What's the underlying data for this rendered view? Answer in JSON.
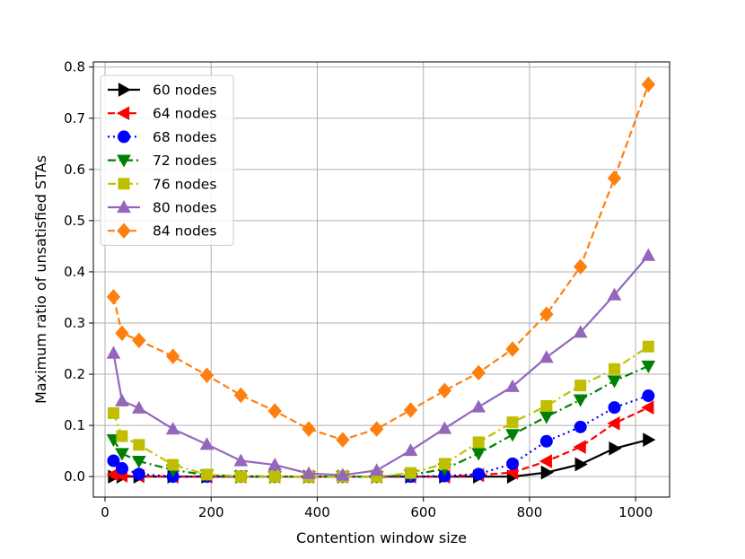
{
  "chart_data": {
    "type": "line",
    "title": "",
    "xlabel": "Contention window size",
    "ylabel": "Maximum ratio of unsatisfied STAs",
    "xlim": [
      -22,
      1064
    ],
    "ylim": [
      -0.04,
      0.81
    ],
    "xticks": [
      0,
      200,
      400,
      600,
      800,
      1000
    ],
    "xtick_labels": [
      "0",
      "200",
      "400",
      "600",
      "800",
      "1000"
    ],
    "yticks": [
      0.0,
      0.1,
      0.2,
      0.3,
      0.4,
      0.5,
      0.6,
      0.7,
      0.8
    ],
    "ytick_labels": [
      "0.0",
      "0.1",
      "0.2",
      "0.3",
      "0.4",
      "0.5",
      "0.6",
      "0.7",
      "0.8"
    ],
    "grid": true,
    "legend_position": "upper-left",
    "x": [
      16,
      32,
      64,
      128,
      192,
      256,
      320,
      384,
      448,
      512,
      576,
      640,
      704,
      768,
      832,
      896,
      960,
      1024
    ],
    "series": [
      {
        "name": "60 nodes",
        "color": "#000000",
        "marker": "triangle-right",
        "linestyle": "solid",
        "values": [
          0.0,
          0.0,
          0.0,
          0.0,
          0.0,
          0.0,
          0.0,
          0.0,
          0.0,
          0.0,
          0.0,
          0.0,
          0.0,
          0.0,
          0.008,
          0.024,
          0.055,
          0.072
        ]
      },
      {
        "name": "64 nodes",
        "color": "#ff0000",
        "marker": "triangle-left",
        "linestyle": "dashed",
        "values": [
          0.004,
          0.002,
          0.001,
          0.0,
          0.0,
          0.0,
          0.0,
          0.0,
          0.0,
          0.0,
          0.0,
          0.0,
          0.003,
          0.008,
          0.03,
          0.058,
          0.104,
          0.135
        ]
      },
      {
        "name": "68 nodes",
        "color": "#0000ff",
        "marker": "circle",
        "linestyle": "dotted",
        "values": [
          0.031,
          0.016,
          0.005,
          0.0,
          0.0,
          0.0,
          0.0,
          0.0,
          0.0,
          0.0,
          0.0,
          0.001,
          0.005,
          0.025,
          0.069,
          0.097,
          0.135,
          0.158
        ]
      },
      {
        "name": "72 nodes",
        "color": "#008000",
        "marker": "triangle-down",
        "linestyle": "dashdot",
        "values": [
          0.072,
          0.045,
          0.03,
          0.013,
          0.003,
          0.001,
          0.0,
          0.0,
          0.0,
          0.0,
          0.003,
          0.015,
          0.045,
          0.082,
          0.117,
          0.15,
          0.187,
          0.216
        ]
      },
      {
        "name": "76 nodes",
        "color": "#bfbf00",
        "marker": "square",
        "linestyle": "dashdot",
        "values": [
          0.124,
          0.079,
          0.062,
          0.023,
          0.004,
          0.0,
          0.0,
          0.0,
          0.0,
          0.0,
          0.007,
          0.025,
          0.067,
          0.106,
          0.138,
          0.178,
          0.21,
          0.254
        ]
      },
      {
        "name": "80 nodes",
        "color": "#9467bd",
        "marker": "triangle-up",
        "linestyle": "solid",
        "values": [
          0.241,
          0.148,
          0.134,
          0.093,
          0.063,
          0.031,
          0.023,
          0.006,
          0.003,
          0.012,
          0.051,
          0.094,
          0.136,
          0.176,
          0.233,
          0.282,
          0.355,
          0.432
        ]
      },
      {
        "name": "84 nodes",
        "color": "#ff7f0e",
        "marker": "diamond",
        "linestyle": "dashed",
        "values": [
          0.351,
          0.28,
          0.266,
          0.235,
          0.198,
          0.159,
          0.128,
          0.093,
          0.072,
          0.093,
          0.13,
          0.168,
          0.203,
          0.249,
          0.317,
          0.41,
          0.583,
          0.766
        ]
      }
    ]
  }
}
